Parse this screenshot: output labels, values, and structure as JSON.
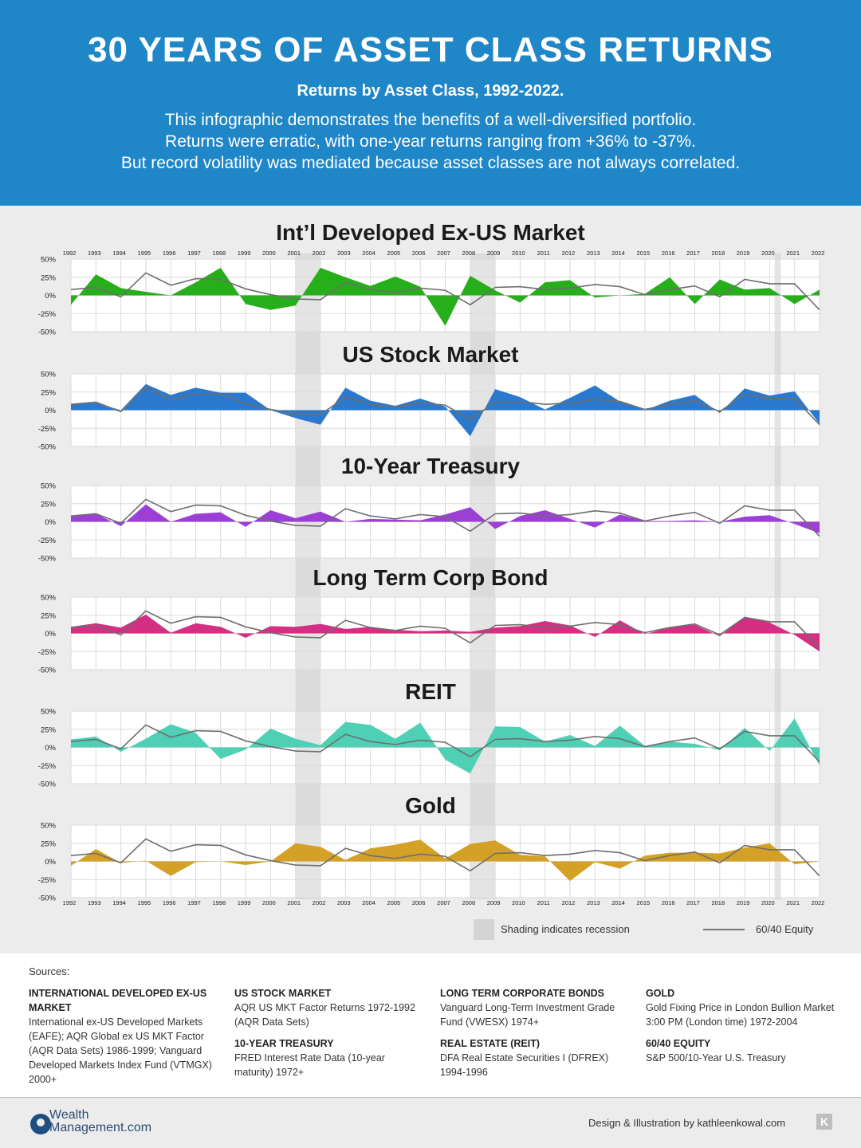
{
  "header": {
    "title": "30 YEARS OF ASSET CLASS RETURNS",
    "subtitle": "Returns by Asset Class, 1992-2022.",
    "description": [
      "This infographic demonstrates the benefits of a well-diversified portfolio.",
      "Returns were erratic, with one-year returns ranging from +36% to -37%.",
      "But record volatility was mediated because asset classes are not always correlated."
    ]
  },
  "chart_data": [
    {
      "type": "area",
      "title": "Int’l Developed Ex-US Market",
      "color": "#27ae1b",
      "x": [
        "1992",
        "1993",
        "1994",
        "1995",
        "1996",
        "1997",
        "1998",
        "1999",
        "2000",
        "2001",
        "2002",
        "2003",
        "2004",
        "2005",
        "2006",
        "2007",
        "2008",
        "2009",
        "2010",
        "2011",
        "2012",
        "2013",
        "2014",
        "2015",
        "2016",
        "2017",
        "2018",
        "2019",
        "2020",
        "2021",
        "2022"
      ],
      "y_ticks": [
        "50%",
        "25%",
        "0%",
        "-25%",
        "-50%"
      ],
      "ylim": [
        -50,
        50
      ],
      "values": [
        -13,
        29,
        10,
        5,
        0,
        18,
        38,
        -12,
        -20,
        -14,
        38,
        25,
        13,
        26,
        12,
        -42,
        27,
        7,
        -10,
        18,
        21,
        -3,
        0,
        2,
        25,
        -12,
        22,
        8,
        10,
        -12,
        8
      ],
      "benchmark": [
        8,
        11,
        -2,
        31,
        14,
        23,
        22,
        9,
        1,
        -5,
        -6,
        18,
        8,
        4,
        10,
        7,
        -13,
        11,
        12,
        8,
        10,
        15,
        12,
        1,
        8,
        13,
        -2,
        22,
        16,
        16,
        -20
      ]
    },
    {
      "type": "area",
      "title": "US Stock Market",
      "color": "#2b79cf",
      "x": [
        "1992",
        "1993",
        "1994",
        "1995",
        "1996",
        "1997",
        "1998",
        "1999",
        "2000",
        "2001",
        "2002",
        "2003",
        "2004",
        "2005",
        "2006",
        "2007",
        "2008",
        "2009",
        "2010",
        "2011",
        "2012",
        "2013",
        "2014",
        "2015",
        "2016",
        "2017",
        "2018",
        "2019",
        "2020",
        "2021",
        "2022"
      ],
      "y_ticks": [
        "50%",
        "25%",
        "0%",
        "-25%",
        "-50%"
      ],
      "ylim": [
        -50,
        50
      ],
      "values": [
        8,
        10,
        0,
        36,
        21,
        31,
        24,
        24,
        0,
        -11,
        -20,
        31,
        13,
        6,
        16,
        5,
        -36,
        29,
        18,
        1,
        17,
        34,
        12,
        0,
        13,
        21,
        -4,
        30,
        20,
        26,
        -19
      ],
      "benchmark": [
        8,
        11,
        -2,
        31,
        14,
        23,
        22,
        9,
        1,
        -5,
        -6,
        18,
        8,
        4,
        10,
        7,
        -13,
        11,
        12,
        8,
        10,
        15,
        12,
        1,
        8,
        13,
        -2,
        22,
        16,
        16,
        -20
      ]
    },
    {
      "type": "area",
      "title": "10-Year Treasury",
      "color": "#9b3fd6",
      "x": [
        "1992",
        "1993",
        "1994",
        "1995",
        "1996",
        "1997",
        "1998",
        "1999",
        "2000",
        "2001",
        "2002",
        "2003",
        "2004",
        "2005",
        "2006",
        "2007",
        "2008",
        "2009",
        "2010",
        "2011",
        "2012",
        "2013",
        "2014",
        "2015",
        "2016",
        "2017",
        "2018",
        "2019",
        "2020",
        "2021",
        "2022"
      ],
      "y_ticks": [
        "50%",
        "25%",
        "0%",
        "-25%",
        "-50%"
      ],
      "ylim": [
        -50,
        50
      ],
      "values": [
        7,
        11,
        -6,
        24,
        0,
        11,
        13,
        -7,
        16,
        5,
        14,
        0,
        4,
        3,
        2,
        10,
        20,
        -10,
        8,
        16,
        4,
        -8,
        10,
        1,
        1,
        2,
        0,
        7,
        9,
        -3,
        -16
      ],
      "benchmark": [
        8,
        11,
        -2,
        31,
        14,
        23,
        22,
        9,
        1,
        -5,
        -6,
        18,
        8,
        4,
        10,
        7,
        -13,
        11,
        12,
        8,
        10,
        15,
        12,
        1,
        8,
        13,
        -2,
        22,
        16,
        16,
        -20
      ]
    },
    {
      "type": "area",
      "title": "Long Term Corp Bond",
      "color": "#d42f83",
      "x": [
        "1992",
        "1993",
        "1994",
        "1995",
        "1996",
        "1997",
        "1998",
        "1999",
        "2000",
        "2001",
        "2002",
        "2003",
        "2004",
        "2005",
        "2006",
        "2007",
        "2008",
        "2009",
        "2010",
        "2011",
        "2012",
        "2013",
        "2014",
        "2015",
        "2016",
        "2017",
        "2018",
        "2019",
        "2020",
        "2021",
        "2022"
      ],
      "y_ticks": [
        "50%",
        "25%",
        "0%",
        "-25%",
        "-50%"
      ],
      "ylim": [
        -50,
        50
      ],
      "values": [
        9,
        14,
        8,
        26,
        1,
        14,
        9,
        -6,
        10,
        9,
        13,
        6,
        9,
        5,
        3,
        4,
        2,
        8,
        10,
        17,
        11,
        -5,
        18,
        -1,
        8,
        12,
        -4,
        23,
        15,
        -2,
        -25
      ],
      "benchmark": [
        8,
        11,
        -2,
        31,
        14,
        23,
        22,
        9,
        1,
        -5,
        -6,
        18,
        8,
        4,
        10,
        7,
        -13,
        11,
        12,
        8,
        10,
        15,
        12,
        1,
        8,
        13,
        -2,
        22,
        16,
        16,
        -20
      ]
    },
    {
      "type": "area",
      "title": "REIT",
      "color": "#4fcfb3",
      "x": [
        "1992",
        "1993",
        "1994",
        "1995",
        "1996",
        "1997",
        "1998",
        "1999",
        "2000",
        "2001",
        "2002",
        "2003",
        "2004",
        "2005",
        "2006",
        "2007",
        "2008",
        "2009",
        "2010",
        "2011",
        "2012",
        "2013",
        "2014",
        "2015",
        "2016",
        "2017",
        "2018",
        "2019",
        "2020",
        "2021",
        "2022"
      ],
      "y_ticks": [
        "50%",
        "25%",
        "0%",
        "-25%",
        "-50%"
      ],
      "ylim": [
        -50,
        50
      ],
      "values": [
        11,
        15,
        -6,
        12,
        32,
        20,
        -16,
        -3,
        26,
        12,
        3,
        35,
        31,
        12,
        34,
        -17,
        -36,
        29,
        28,
        8,
        17,
        2,
        30,
        2,
        8,
        5,
        -4,
        27,
        -5,
        40,
        -25
      ],
      "benchmark": [
        8,
        11,
        -2,
        31,
        14,
        23,
        22,
        9,
        1,
        -5,
        -6,
        18,
        8,
        4,
        10,
        7,
        -13,
        11,
        12,
        8,
        10,
        15,
        12,
        1,
        8,
        13,
        -2,
        22,
        16,
        16,
        -20
      ]
    },
    {
      "type": "area",
      "title": "Gold",
      "color": "#d4a126",
      "x": [
        "1992",
        "1993",
        "1994",
        "1995",
        "1996",
        "1997",
        "1998",
        "1999",
        "2000",
        "2001",
        "2002",
        "2003",
        "2004",
        "2005",
        "2006",
        "2007",
        "2008",
        "2009",
        "2010",
        "2011",
        "2012",
        "2013",
        "2014",
        "2015",
        "2016",
        "2017",
        "2018",
        "2019",
        "2020",
        "2021",
        "2022"
      ],
      "y_ticks": [
        "50%",
        "25%",
        "0%",
        "-25%",
        "-50%"
      ],
      "ylim": [
        -50,
        50
      ],
      "values": [
        -6,
        17,
        -2,
        1,
        -20,
        -1,
        0,
        -5,
        0,
        25,
        20,
        2,
        18,
        23,
        30,
        4,
        24,
        29,
        9,
        7,
        -27,
        -1,
        -10,
        8,
        12,
        12,
        11,
        19,
        25,
        -4,
        0
      ],
      "benchmark": [
        8,
        11,
        -2,
        31,
        14,
        23,
        22,
        9,
        1,
        -5,
        -6,
        18,
        8,
        4,
        10,
        7,
        -13,
        11,
        12,
        8,
        10,
        15,
        12,
        1,
        8,
        13,
        -2,
        22,
        16,
        16,
        -20
      ]
    }
  ],
  "recessions": [
    [
      "2001",
      "2002"
    ],
    [
      "2008",
      "2009"
    ],
    [
      "2020",
      "2020"
    ]
  ],
  "legend": {
    "shading_label": "Shading indicates recession",
    "line_label": "60/40 Equity"
  },
  "sources": {
    "title": "Sources:",
    "columns": [
      [
        {
          "heading": "INTERNATIONAL DEVELOPED EX-US MARKET",
          "text": "International ex-US Developed Markets (EAFE); AQR Global ex US MKT Factor (AQR Data Sets) 1986-1999; Vanguard Developed Markets Index Fund (VTMGX) 2000+"
        }
      ],
      [
        {
          "heading": "US STOCK MARKET",
          "text": "AQR US MKT Factor Returns 1972-1992 (AQR Data Sets)"
        },
        {
          "heading": "10-YEAR TREASURY",
          "text": "FRED Interest Rate Data (10-year maturity) 1972+"
        }
      ],
      [
        {
          "heading": "LONG TERM CORPORATE BONDS",
          "text": "Vanguard Long-Term Investment Grade Fund (VWESX) 1974+"
        },
        {
          "heading": "REAL ESTATE (REIT)",
          "text": "DFA Real Estate Securities I (DFREX) 1994-1996"
        }
      ],
      [
        {
          "heading": "GOLD",
          "text": "Gold Fixing Price in London Bullion Market 3:00 PM (London time) 1972-2004"
        },
        {
          "heading": "60/40 EQUITY",
          "text": "S&P 500/10-Year U.S. Treasury"
        }
      ]
    ]
  },
  "footer": {
    "logo_line1": "Wealth",
    "logo_line2": "Management.com",
    "credit": "Design & Illustration by kathleenkowal.com",
    "mark": "K"
  }
}
